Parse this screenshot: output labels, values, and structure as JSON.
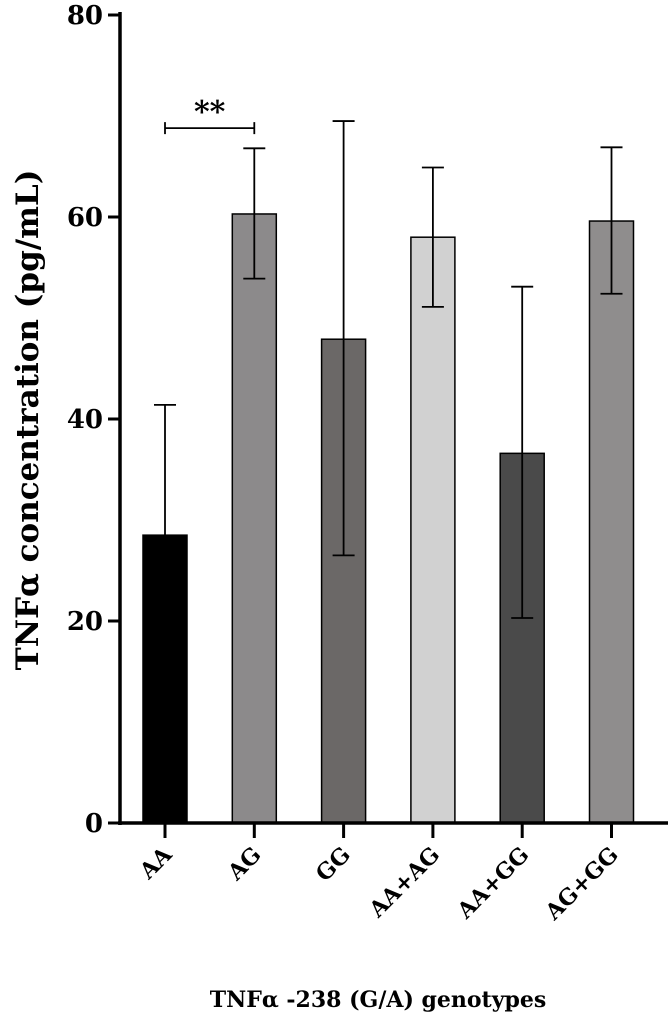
{
  "chart_data": {
    "type": "bar",
    "categories": [
      "AA",
      "AG",
      "GG",
      "AA+AG",
      "AA+GG",
      "AG+GG"
    ],
    "values": [
      28.5,
      60.3,
      47.9,
      58.0,
      36.6,
      59.6
    ],
    "error_upper": [
      41.4,
      66.8,
      69.5,
      64.9,
      53.1,
      66.9
    ],
    "error_lower": [
      null,
      53.9,
      26.5,
      51.1,
      20.3,
      52.4
    ],
    "colors": [
      "#000000",
      "#8c8a8b",
      "#6b6867",
      "#d1d1d1",
      "#4a4a4a",
      "#8f8d8d"
    ],
    "ylabel": "TNFα concentration (pg/mL)",
    "xlabel": "TNFα -238 (G/A) genotypes",
    "ylim": [
      0,
      80
    ],
    "yticks": [
      "0",
      "20",
      "40",
      "60",
      "80"
    ],
    "grid": false,
    "annotations": [
      {
        "text": "**",
        "from": "AA",
        "to": "AG",
        "y": 68.8
      }
    ]
  }
}
